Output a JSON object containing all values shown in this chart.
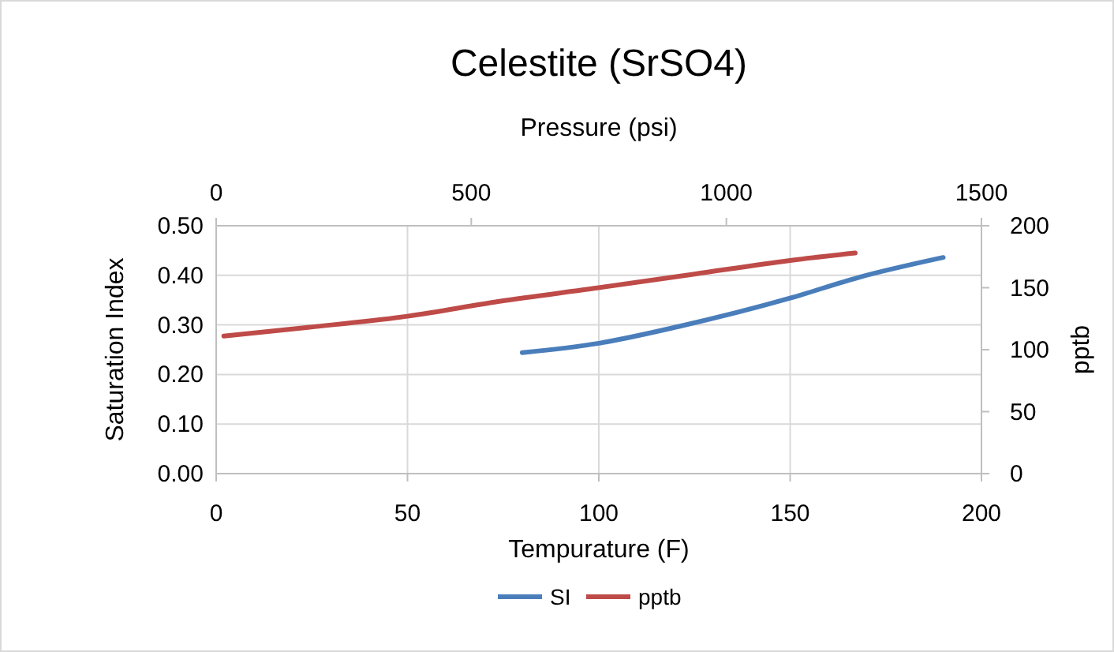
{
  "chart_data": {
    "type": "line",
    "title": "Celestite (SrSO4)",
    "xlabel": "Tempurature (F)",
    "ylabel": "Saturation Index",
    "y2label": "pptb",
    "x2label": "Pressure (psi)",
    "xlim": [
      0,
      200
    ],
    "xticks": [
      0,
      50,
      100,
      150,
      200
    ],
    "x2lim": [
      0,
      1500
    ],
    "x2ticks": [
      0,
      500,
      1000,
      1500
    ],
    "ylim": [
      0,
      0.5
    ],
    "yticks": [
      {
        "value": 0,
        "label": "0.00"
      },
      {
        "value": 0.1,
        "label": "0.10"
      },
      {
        "value": 0.2,
        "label": "0.20"
      },
      {
        "value": 0.3,
        "label": "0.30"
      },
      {
        "value": 0.4,
        "label": "0.40"
      },
      {
        "value": 0.5,
        "label": "0.50"
      }
    ],
    "y2lim": [
      0,
      200
    ],
    "y2ticks": [
      0,
      50,
      100,
      150,
      200
    ],
    "grid": true,
    "legend": "bottom",
    "line_style": "solid",
    "marker": "none",
    "series": [
      {
        "name": "SI",
        "color": "#4a7ebb",
        "x": [
          80,
          100,
          121,
          150,
          168,
          190
        ],
        "values": [
          0.244,
          0.263,
          0.297,
          0.354,
          0.396,
          0.436
        ]
      },
      {
        "name": "pptb",
        "color": "#be4b48",
        "axis": "y2",
        "x": [
          2,
          24,
          50,
          74,
          100,
          125,
          150,
          167
        ],
        "values": [
          111,
          118,
          127,
          139,
          150,
          161,
          172,
          178
        ]
      }
    ]
  }
}
